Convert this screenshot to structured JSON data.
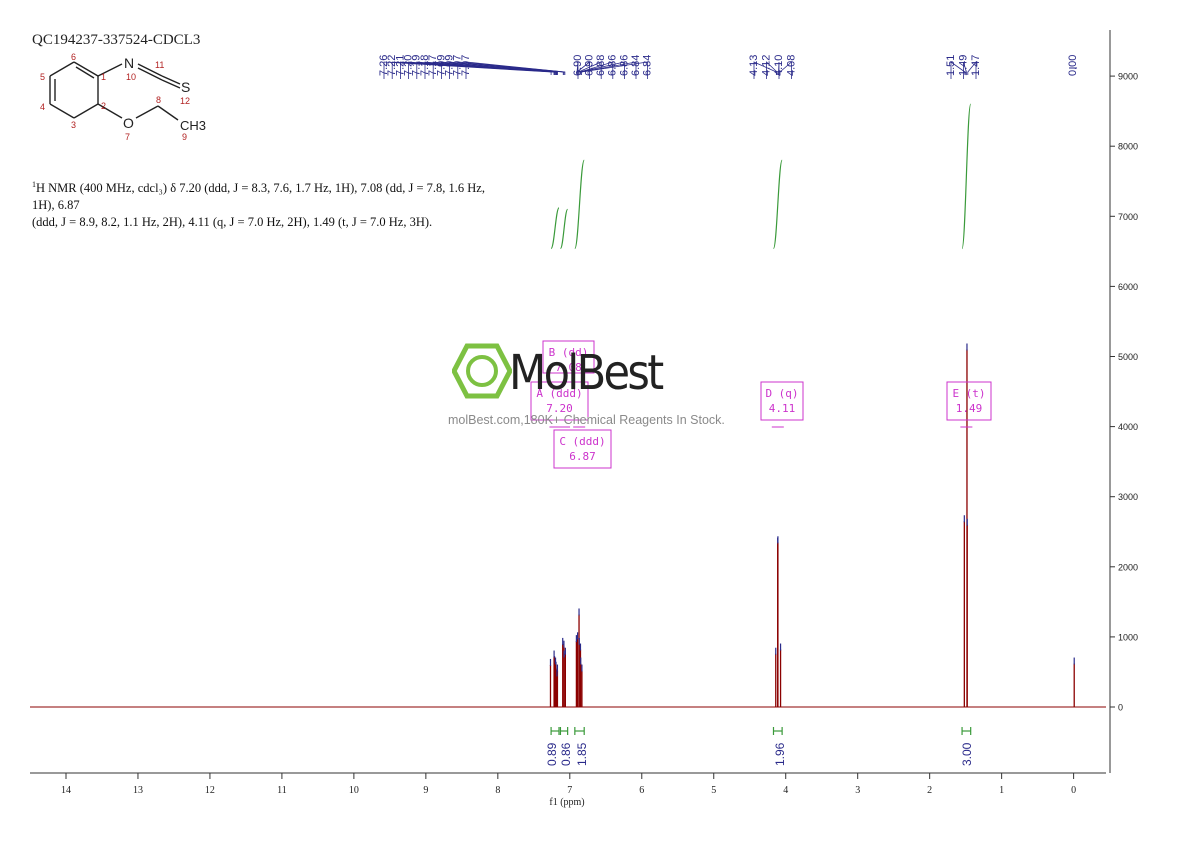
{
  "sample_id": "QC194237-337524-CDCL3",
  "description": {
    "nucleus_sup": "1",
    "line1": "H NMR (400 MHz, cdcl₃) δ 7.20 (ddd, J = 8.3, 7.6, 1.7 Hz, 1H), 7.08 (dd, J = 7.8, 1.6 Hz, 1H), 6.87",
    "line2": "(ddd, J = 8.9, 8.2, 1.1 Hz, 2H), 4.11 (q, J = 7.0 Hz, 2H), 1.49 (t, J = 7.0 Hz, 3H)."
  },
  "watermark": {
    "name": "MolBest",
    "tagline": "molBest.com,180K+ Chemical Reagents In Stock."
  },
  "structure": {
    "atom_labels": [
      "N",
      "S",
      "O",
      "CH3"
    ],
    "atom_numbers": [
      "1",
      "2",
      "3",
      "4",
      "5",
      "6",
      "7",
      "8",
      "9",
      "10",
      "11",
      "12"
    ]
  },
  "colors": {
    "spectrum": "#8b0000",
    "peak_labels": "#2a2a8a",
    "integrals": "#3a9a3a",
    "multiplet_boxes": "#cc33cc",
    "watermark_green": "#7dc142",
    "axis": "#333333"
  },
  "chart_data": {
    "type": "line",
    "title": "",
    "xlabel": "f1 (ppm)",
    "ylabel": "",
    "xlim": [
      14.5,
      -0.45
    ],
    "ylim": [
      -1000,
      9700
    ],
    "x_reversed": true,
    "x_ticks": [
      14,
      13,
      12,
      11,
      10,
      9,
      8,
      7,
      6,
      5,
      4,
      3,
      2,
      1,
      0
    ],
    "y_ticks": [
      0,
      1000,
      2000,
      3000,
      4000,
      5000,
      6000,
      7000,
      8000,
      9000
    ],
    "y_axis_side": "right",
    "peaks": [
      {
        "ppm": 7.26,
        "height": 600
      },
      {
        "ppm": 7.22,
        "height": 640
      },
      {
        "ppm": 7.21,
        "height": 720
      },
      {
        "ppm": 7.2,
        "height": 560
      },
      {
        "ppm": 7.19,
        "height": 620
      },
      {
        "ppm": 7.18,
        "height": 520
      },
      {
        "ppm": 7.17,
        "height": 450
      },
      {
        "ppm": 7.09,
        "height": 860
      },
      {
        "ppm": 7.09,
        "height": 900
      },
      {
        "ppm": 7.07,
        "height": 760
      },
      {
        "ppm": 7.07,
        "height": 720
      },
      {
        "ppm": 6.9,
        "height": 980
      },
      {
        "ppm": 6.9,
        "height": 940
      },
      {
        "ppm": 6.88,
        "height": 1320
      },
      {
        "ppm": 6.86,
        "height": 900
      },
      {
        "ppm": 6.86,
        "height": 820
      },
      {
        "ppm": 6.84,
        "height": 620
      },
      {
        "ppm": 6.84,
        "height": 520
      },
      {
        "ppm": 4.13,
        "height": 760
      },
      {
        "ppm": 4.12,
        "height": 2330
      },
      {
        "ppm": 4.1,
        "height": 2350
      },
      {
        "ppm": 4.08,
        "height": 820
      },
      {
        "ppm": 1.51,
        "height": 2650
      },
      {
        "ppm": 1.49,
        "height": 5100
      },
      {
        "ppm": 1.47,
        "height": 2600
      },
      {
        "ppm": 0.0,
        "height": 620
      }
    ],
    "peak_labels": {
      "group1": [
        "7.26",
        "7.22",
        "7.21",
        "7.20",
        "7.19",
        "7.18",
        "7.17",
        "7.09",
        "7.09",
        "7.07",
        "7.07"
      ],
      "group2": [
        "6.90",
        "6.90",
        "6.88",
        "6.86",
        "6.86",
        "6.84",
        "6.84"
      ],
      "group3": [
        "4.13",
        "4.12",
        "4.10",
        "4.08"
      ],
      "group4": [
        "1.51",
        "1.49",
        "1.47"
      ],
      "group5": [
        "0.00"
      ]
    },
    "integrals": [
      {
        "from": 7.26,
        "to": 7.15,
        "value": "0.89",
        "curve_y": [
          6540,
          7120
        ]
      },
      {
        "from": 7.13,
        "to": 7.03,
        "value": "0.86",
        "curve_y": [
          6540,
          7100
        ]
      },
      {
        "from": 6.93,
        "to": 6.8,
        "value": "1.85",
        "curve_y": [
          6540,
          7800
        ]
      },
      {
        "from": 4.17,
        "to": 4.05,
        "value": "1.96",
        "curve_y": [
          6540,
          7800
        ]
      },
      {
        "from": 1.55,
        "to": 1.43,
        "value": "3.00",
        "curve_y": [
          6540,
          8600
        ]
      }
    ],
    "multiplets": [
      {
        "label": "B (dd)",
        "value": "7.08",
        "ppm": 7.08
      },
      {
        "label": "A (ddd)",
        "value": "7.20",
        "ppm": 7.2
      },
      {
        "label": "C (ddd)",
        "value": "6.87",
        "ppm": 6.87
      },
      {
        "label": "D (q)",
        "value": "4.11",
        "ppm": 4.11
      },
      {
        "label": "E (t)",
        "value": "1.49",
        "ppm": 1.49
      }
    ]
  }
}
